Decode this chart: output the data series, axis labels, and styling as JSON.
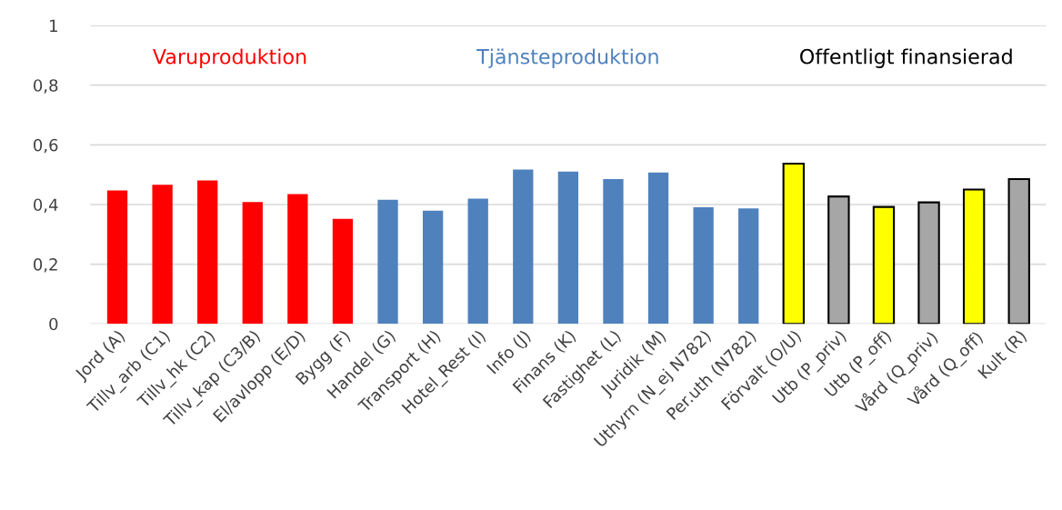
{
  "chart_data": {
    "type": "bar",
    "categories": [
      "Jord (A)",
      "Tillv_arb (C1)",
      "Tillv_hk (C2)",
      "Tillv_kap (C3/B)",
      "El/avlopp (E/D)",
      "Bygg (F)",
      "Handel (G)",
      "Transport (H)",
      "Hotel_Rest (I)",
      "Info (J)",
      "Finans (K)",
      "Fastighet (L)",
      "Juridik (M)",
      "Uthyrn (N_ej N782)",
      "Per.uth (N782)",
      "Förvalt (O/U)",
      "Utb (P_priv)",
      "Utb (P_off)",
      "Vård (Q_priv)",
      "Vård (Q_off)",
      "Kult (R)"
    ],
    "series": [
      {
        "name": "Varuproduktion",
        "color": "#ff0000",
        "values": [
          0.447,
          0.466,
          0.481,
          0.408,
          0.435,
          0.352,
          null,
          null,
          null,
          null,
          null,
          null,
          null,
          null,
          null,
          null,
          null,
          null,
          null,
          null,
          null
        ]
      },
      {
        "name": "Tjänsteproduktion",
        "color": "#4f81bd",
        "values": [
          null,
          null,
          null,
          null,
          null,
          null,
          0.416,
          0.379,
          0.42,
          0.517,
          0.51,
          0.485,
          0.507,
          0.391,
          0.387,
          null,
          null,
          null,
          null,
          null,
          null
        ]
      },
      {
        "name": "Offentligt finansierad",
        "color": "#000000",
        "values": [
          null,
          null,
          null,
          null,
          null,
          null,
          null,
          null,
          null,
          null,
          null,
          null,
          null,
          null,
          null,
          0.537,
          0.427,
          0.392,
          0.407,
          0.45,
          0.485
        ],
        "colors": [
          "#ffff00",
          "#ffff00",
          "#ffff00",
          "#ffff00",
          "#ffff00",
          "#ffff00",
          "#ffff00",
          "#ffff00",
          "#ffff00",
          "#ffff00",
          "#ffff00",
          "#ffff00",
          "#ffff00",
          "#ffff00",
          "#ffff00",
          "#ffff00",
          "#a6a6a6",
          "#ffff00",
          "#a6a6a6",
          "#ffff00",
          "#a6a6a6"
        ]
      }
    ],
    "ylim": [
      0,
      1
    ],
    "yticks": [
      0,
      {
        "value": 0.2,
        "label": "0,2"
      },
      {
        "value": 0.4,
        "label": "0,4"
      },
      {
        "value": 0.6,
        "label": "0,6"
      },
      {
        "value": 0.8,
        "label": "0,8"
      },
      1
    ],
    "grid": "y",
    "legend": false
  }
}
